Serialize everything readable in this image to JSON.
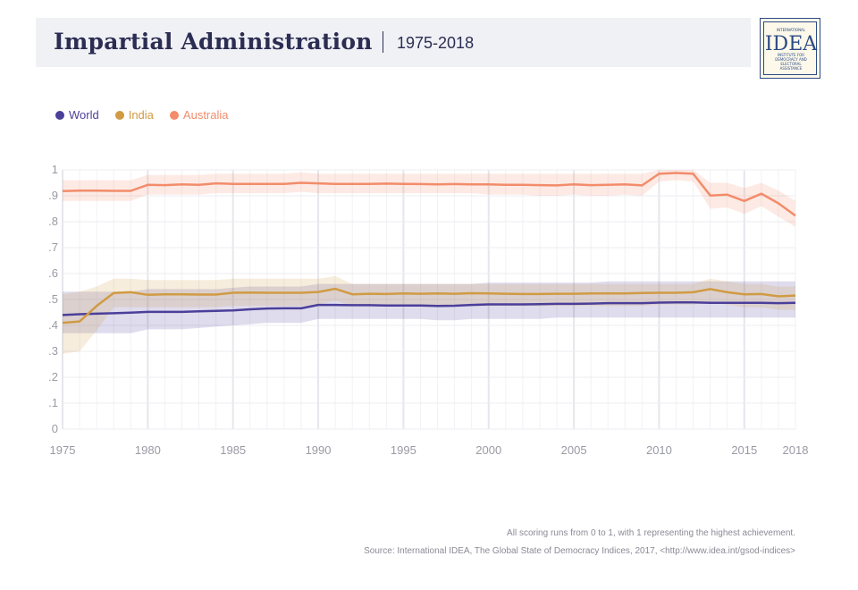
{
  "header": {
    "title": "Impartial Administration",
    "subtitle": "1975-2018"
  },
  "logo": {
    "top_text": "INTERNATIONAL",
    "mark": "IDEA",
    "lines": [
      "INSTITUTE FOR",
      "DEMOCRACY AND",
      "ELECTORAL",
      "ASSISTANCE"
    ]
  },
  "legend": [
    {
      "label": "World",
      "color": "#4b3f9a"
    },
    {
      "label": "India",
      "color": "#d09b43"
    },
    {
      "label": "Australia",
      "color": "#f28c6b"
    }
  ],
  "chart_data": {
    "type": "line",
    "x_ticks": [
      "1975",
      "1980",
      "1985",
      "1990",
      "1995",
      "2000",
      "2005",
      "2010",
      "2015",
      "2018"
    ],
    "y_ticks": [
      "0",
      ".1",
      ".2",
      ".3",
      ".4",
      ".5",
      ".6",
      ".7",
      ".8",
      ".9",
      "1"
    ],
    "xlim": [
      1975,
      2018
    ],
    "ylim": [
      0,
      1
    ],
    "grid": true,
    "legend_position": "top-left",
    "series": [
      {
        "name": "World",
        "color": "#4b3f9a",
        "values": [
          0.44,
          0.443,
          0.445,
          0.447,
          0.449,
          0.452,
          0.452,
          0.452,
          0.454,
          0.456,
          0.458,
          0.462,
          0.465,
          0.466,
          0.466,
          0.479,
          0.479,
          0.478,
          0.478,
          0.477,
          0.477,
          0.477,
          0.475,
          0.476,
          0.479,
          0.481,
          0.481,
          0.481,
          0.482,
          0.483,
          0.483,
          0.484,
          0.486,
          0.486,
          0.486,
          0.488,
          0.489,
          0.489,
          0.487,
          0.487,
          0.487,
          0.487,
          0.486,
          0.487
        ],
        "upper": [
          0.53,
          0.53,
          0.53,
          0.53,
          0.53,
          0.54,
          0.54,
          0.54,
          0.54,
          0.54,
          0.545,
          0.55,
          0.55,
          0.55,
          0.55,
          0.56,
          0.56,
          0.56,
          0.56,
          0.56,
          0.56,
          0.56,
          0.56,
          0.56,
          0.56,
          0.565,
          0.565,
          0.565,
          0.565,
          0.565,
          0.565,
          0.565,
          0.57,
          0.57,
          0.57,
          0.57,
          0.57,
          0.57,
          0.57,
          0.57,
          0.57,
          0.57,
          0.57,
          0.57
        ],
        "lower": [
          0.37,
          0.37,
          0.37,
          0.37,
          0.37,
          0.385,
          0.385,
          0.385,
          0.39,
          0.395,
          0.4,
          0.405,
          0.41,
          0.41,
          0.41,
          0.425,
          0.425,
          0.425,
          0.425,
          0.425,
          0.425,
          0.425,
          0.42,
          0.42,
          0.425,
          0.425,
          0.425,
          0.425,
          0.425,
          0.43,
          0.43,
          0.43,
          0.43,
          0.43,
          0.43,
          0.43,
          0.43,
          0.43,
          0.43,
          0.43,
          0.43,
          0.43,
          0.43,
          0.43
        ]
      },
      {
        "name": "India",
        "color": "#d09b43",
        "values": [
          0.41,
          0.415,
          0.475,
          0.525,
          0.528,
          0.518,
          0.52,
          0.52,
          0.519,
          0.519,
          0.526,
          0.527,
          0.526,
          0.526,
          0.526,
          0.529,
          0.541,
          0.52,
          0.522,
          0.521,
          0.523,
          0.522,
          0.523,
          0.522,
          0.524,
          0.523,
          0.522,
          0.521,
          0.521,
          0.522,
          0.522,
          0.523,
          0.523,
          0.523,
          0.525,
          0.526,
          0.526,
          0.528,
          0.54,
          0.528,
          0.52,
          0.521,
          0.512,
          0.515
        ],
        "upper": [
          0.52,
          0.53,
          0.55,
          0.58,
          0.58,
          0.575,
          0.575,
          0.575,
          0.575,
          0.575,
          0.58,
          0.58,
          0.58,
          0.58,
          0.58,
          0.58,
          0.59,
          0.56,
          0.56,
          0.56,
          0.56,
          0.56,
          0.56,
          0.56,
          0.56,
          0.56,
          0.56,
          0.56,
          0.56,
          0.56,
          0.56,
          0.56,
          0.56,
          0.56,
          0.56,
          0.56,
          0.56,
          0.56,
          0.58,
          0.57,
          0.56,
          0.56,
          0.55,
          0.55
        ],
        "lower": [
          0.29,
          0.3,
          0.38,
          0.47,
          0.47,
          0.47,
          0.47,
          0.47,
          0.47,
          0.47,
          0.475,
          0.475,
          0.475,
          0.475,
          0.475,
          0.48,
          0.495,
          0.475,
          0.475,
          0.475,
          0.475,
          0.475,
          0.475,
          0.475,
          0.475,
          0.475,
          0.475,
          0.475,
          0.475,
          0.475,
          0.475,
          0.475,
          0.475,
          0.475,
          0.475,
          0.48,
          0.48,
          0.48,
          0.49,
          0.48,
          0.47,
          0.47,
          0.46,
          0.46
        ]
      },
      {
        "name": "Australia",
        "color": "#f28c6b",
        "values": [
          0.918,
          0.92,
          0.92,
          0.919,
          0.919,
          0.942,
          0.941,
          0.944,
          0.942,
          0.948,
          0.946,
          0.946,
          0.946,
          0.946,
          0.95,
          0.948,
          0.946,
          0.946,
          0.946,
          0.947,
          0.946,
          0.945,
          0.944,
          0.945,
          0.944,
          0.944,
          0.942,
          0.942,
          0.941,
          0.94,
          0.944,
          0.941,
          0.942,
          0.944,
          0.94,
          0.985,
          0.988,
          0.985,
          0.901,
          0.904,
          0.88,
          0.908,
          0.871,
          0.823
        ],
        "upper": [
          0.96,
          0.96,
          0.96,
          0.96,
          0.96,
          0.98,
          0.98,
          0.98,
          0.98,
          0.985,
          0.985,
          0.985,
          0.985,
          0.985,
          0.99,
          0.985,
          0.985,
          0.985,
          0.985,
          0.985,
          0.985,
          0.985,
          0.985,
          0.985,
          0.985,
          0.985,
          0.985,
          0.985,
          0.985,
          0.985,
          0.985,
          0.985,
          0.985,
          0.985,
          0.985,
          1.0,
          1.0,
          1.0,
          0.95,
          0.95,
          0.93,
          0.95,
          0.92,
          0.88
        ],
        "lower": [
          0.88,
          0.88,
          0.88,
          0.88,
          0.88,
          0.905,
          0.905,
          0.905,
          0.905,
          0.91,
          0.91,
          0.91,
          0.91,
          0.91,
          0.915,
          0.91,
          0.91,
          0.91,
          0.91,
          0.91,
          0.91,
          0.91,
          0.91,
          0.91,
          0.91,
          0.905,
          0.905,
          0.905,
          0.9,
          0.9,
          0.905,
          0.9,
          0.9,
          0.905,
          0.9,
          0.955,
          0.96,
          0.955,
          0.85,
          0.855,
          0.83,
          0.86,
          0.82,
          0.78
        ]
      }
    ]
  },
  "footnote": "All scoring runs from 0 to 1, with 1 representing the highest achievement.",
  "source": "Source: International IDEA, The Global State of Democracy Indices, 2017, <http://www.idea.int/gsod-indices>"
}
